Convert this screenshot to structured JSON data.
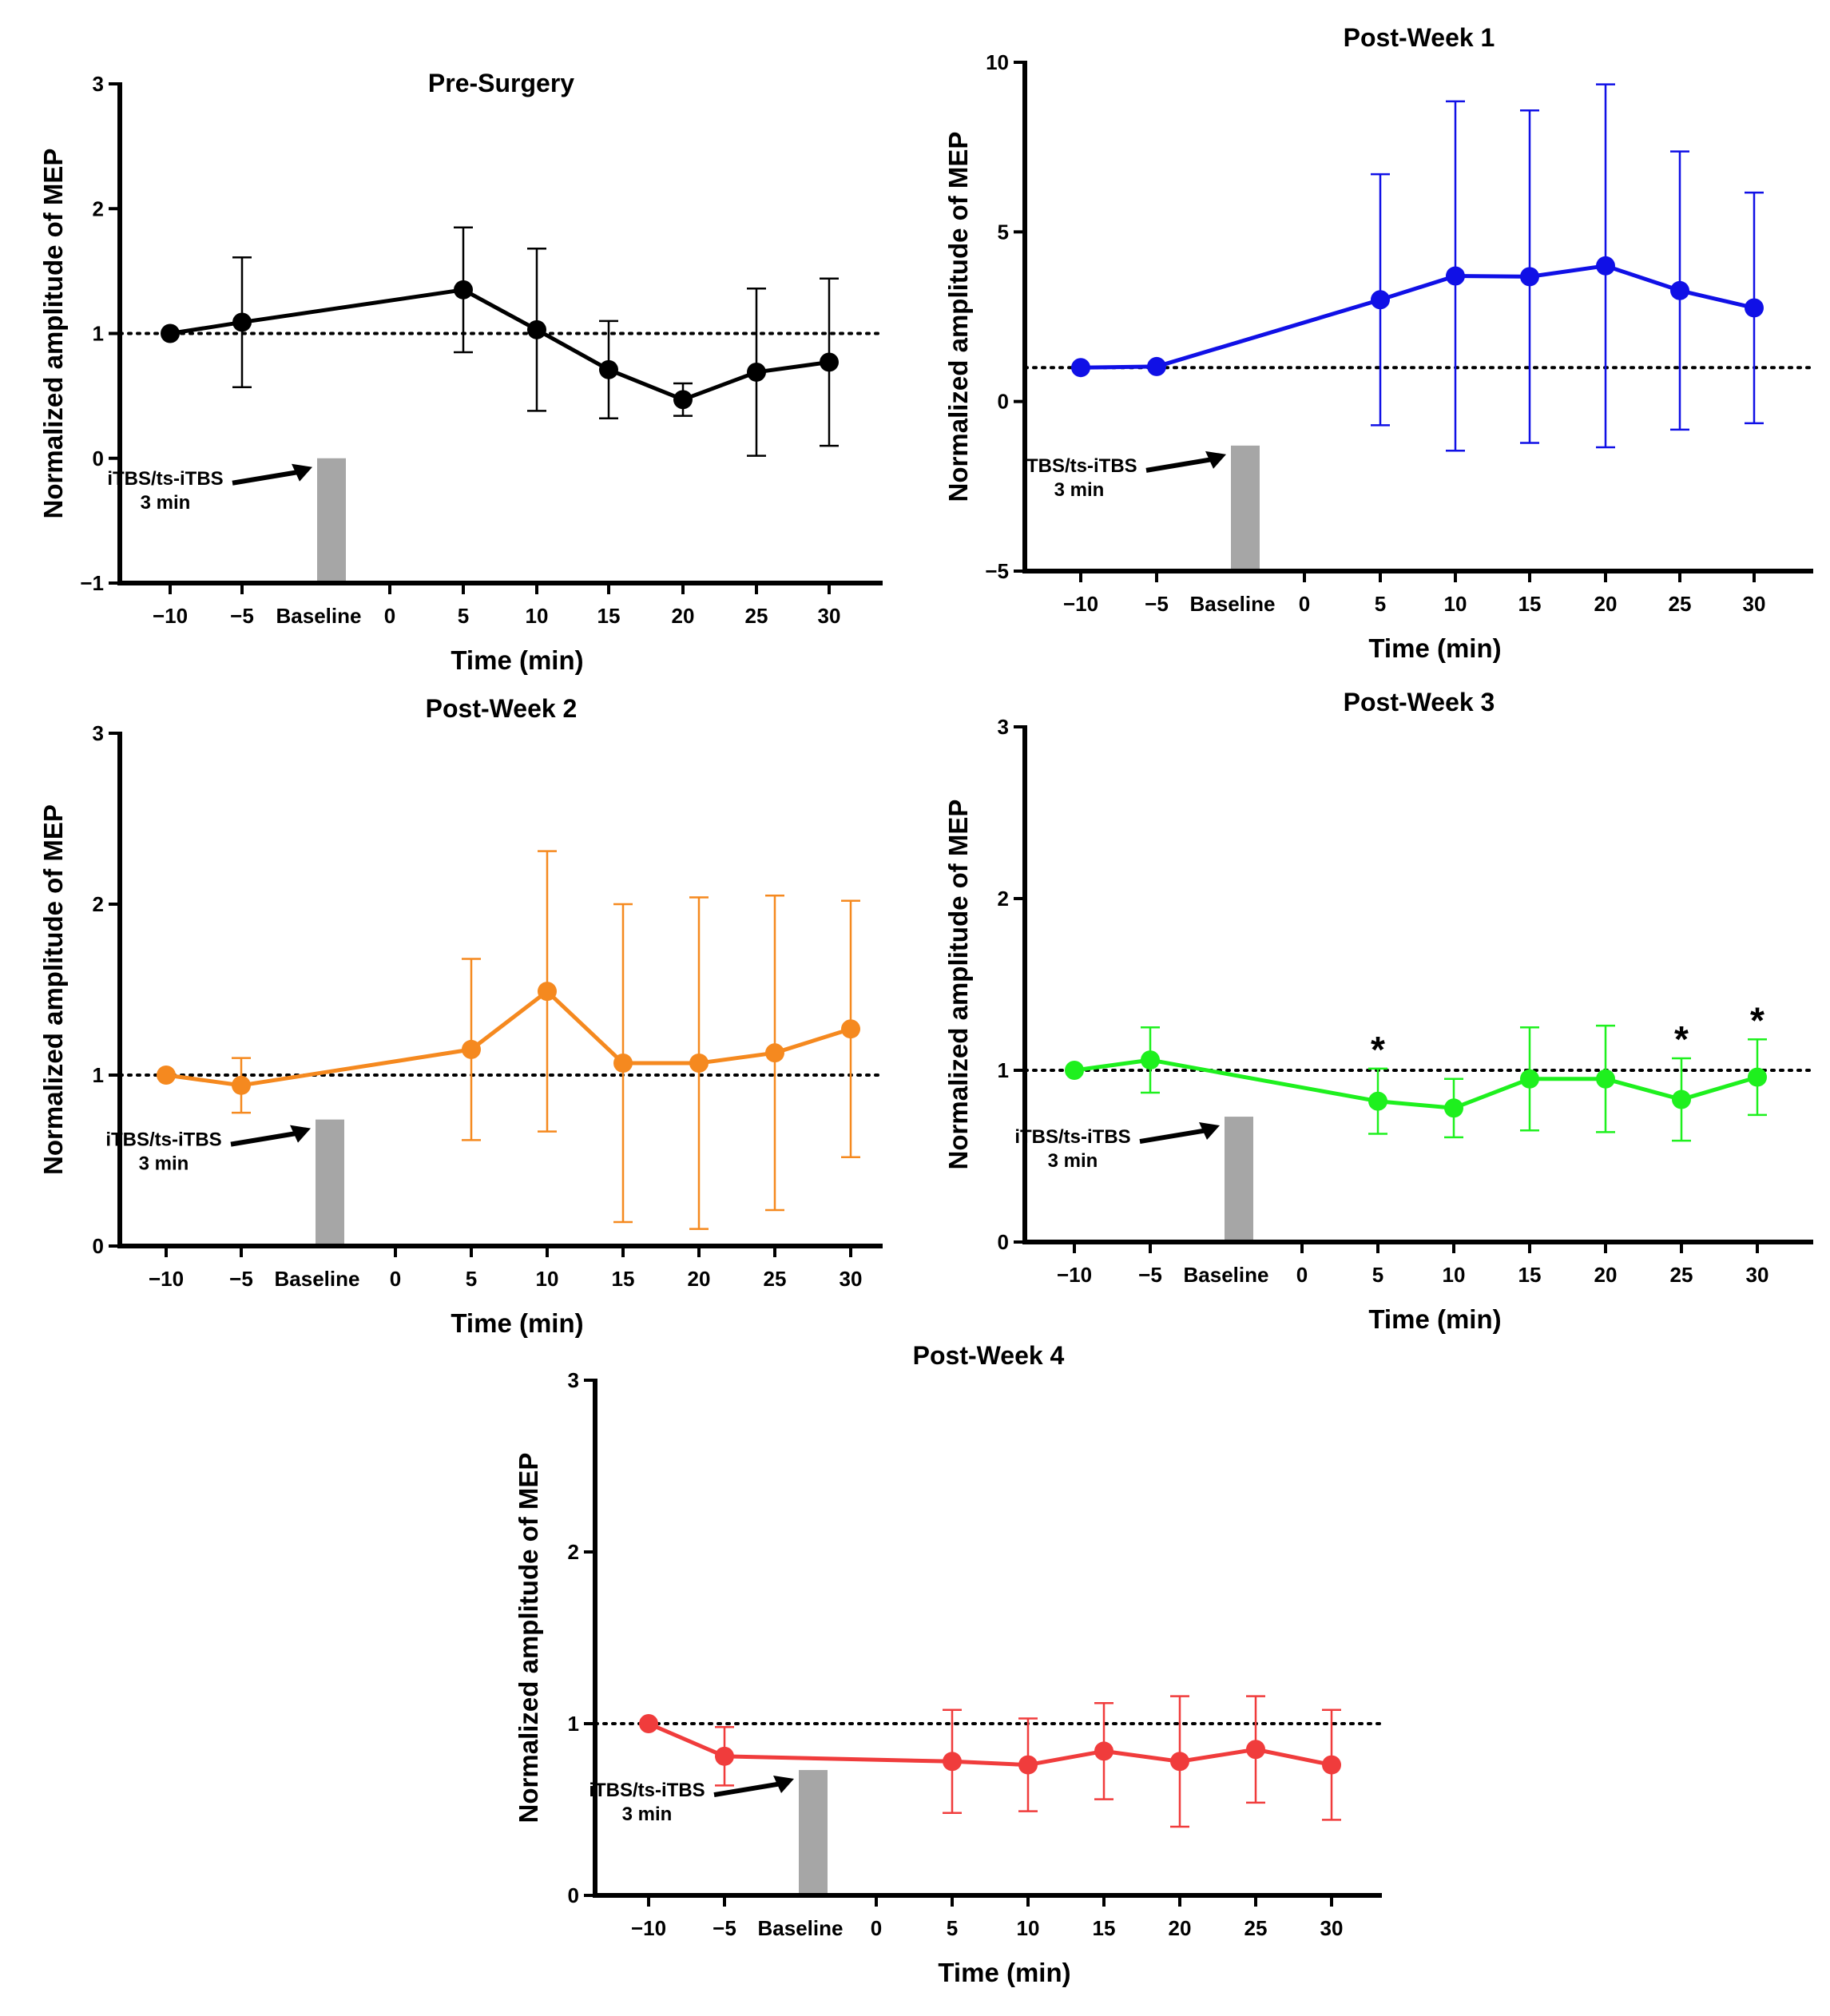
{
  "figure": {
    "x_label": "Time (min)",
    "y_label": "Normalized amplitude of  MEP",
    "baseline_label": "Baseline",
    "stim_label_line1": "iTBS/ts-iTBS",
    "stim_label_line2": "3 min",
    "stim_bar_color": "#a6a6a6",
    "reference_line_value": 1
  },
  "chart_data": [
    {
      "type": "line",
      "title": "Pre-Surgery",
      "color": "#000000",
      "xlabel": "Time (min)",
      "ylabel": "Normalized amplitude of  MEP",
      "x_ticks": [
        "−10",
        "−5",
        "Baseline",
        "0",
        "5",
        "10",
        "15",
        "20",
        "25",
        "30"
      ],
      "ylim": [
        -1,
        3
      ],
      "y_ticks": [
        "−1",
        "0",
        "1",
        "2",
        "3"
      ],
      "x": [
        -10,
        -5,
        5,
        10,
        15,
        20,
        25,
        30
      ],
      "values": [
        1.0,
        1.09,
        1.35,
        1.03,
        0.71,
        0.47,
        0.69,
        0.77
      ],
      "error": [
        0,
        0.52,
        0.5,
        0.65,
        0.39,
        0.13,
        0.67,
        0.67
      ],
      "stim_bar_top": 0,
      "significant_x": []
    },
    {
      "type": "line",
      "title": "Post-Week 1",
      "color": "#1010e6",
      "xlabel": "Time (min)",
      "ylabel": "Normalized amplitude of  MEP",
      "x_ticks": [
        "−10",
        "−5",
        "Baseline",
        "0",
        "5",
        "10",
        "15",
        "20",
        "25",
        "30"
      ],
      "ylim": [
        -5,
        10
      ],
      "y_ticks": [
        "−5",
        "0",
        "5",
        "10"
      ],
      "x": [
        -10,
        -5,
        5,
        10,
        15,
        20,
        25,
        30
      ],
      "values": [
        1.0,
        1.03,
        3.0,
        3.7,
        3.68,
        4.0,
        3.27,
        2.76
      ],
      "error": [
        0,
        0,
        3.7,
        5.15,
        4.9,
        5.35,
        4.1,
        3.4
      ],
      "stim_bar_top": -1.3,
      "significant_x": []
    },
    {
      "type": "line",
      "title": "Post-Week 2",
      "color": "#f5891f",
      "xlabel": "Time (min)",
      "ylabel": "Normalized amplitude of  MEP",
      "x_ticks": [
        "−10",
        "−5",
        "Baseline",
        "0",
        "5",
        "10",
        "15",
        "20",
        "25",
        "30"
      ],
      "ylim": [
        0,
        3
      ],
      "y_ticks": [
        "0",
        "1",
        "2",
        "3"
      ],
      "x": [
        -10,
        -5,
        5,
        10,
        15,
        20,
        25,
        30
      ],
      "values": [
        1.0,
        0.94,
        1.15,
        1.49,
        1.07,
        1.07,
        1.13,
        1.27
      ],
      "error": [
        0,
        0.16,
        0.53,
        0.82,
        0.93,
        0.97,
        0.92,
        0.75
      ],
      "stim_bar_top": 0.74,
      "significant_x": []
    },
    {
      "type": "line",
      "title": "Post-Week 3",
      "color": "#1ef01e",
      "xlabel": "Time (min)",
      "ylabel": "Normalized amplitude of  MEP",
      "x_ticks": [
        "−10",
        "−5",
        "Baseline",
        "0",
        "5",
        "10",
        "15",
        "20",
        "25",
        "30"
      ],
      "ylim": [
        0,
        3
      ],
      "y_ticks": [
        "0",
        "1",
        "2",
        "3"
      ],
      "x": [
        -10,
        -5,
        5,
        10,
        15,
        20,
        25,
        30
      ],
      "values": [
        1.0,
        1.06,
        0.82,
        0.78,
        0.95,
        0.95,
        0.83,
        0.96
      ],
      "error": [
        0,
        0.19,
        0.19,
        0.17,
        0.3,
        0.31,
        0.24,
        0.22
      ],
      "stim_bar_top": 0.73,
      "significant_x": [
        5,
        25,
        30
      ],
      "significance_mark": "*"
    },
    {
      "type": "line",
      "title": "Post-Week 4",
      "color": "#f03c3c",
      "xlabel": "Time (min)",
      "ylabel": "Normalized amplitude of  MEP",
      "x_ticks": [
        "−10",
        "−5",
        "Baseline",
        "0",
        "5",
        "10",
        "15",
        "20",
        "25",
        "30"
      ],
      "ylim": [
        0,
        3
      ],
      "y_ticks": [
        "0",
        "1",
        "2",
        "3"
      ],
      "x": [
        -10,
        -5,
        5,
        10,
        15,
        20,
        25,
        30
      ],
      "values": [
        1.0,
        0.81,
        0.78,
        0.76,
        0.84,
        0.78,
        0.85,
        0.76
      ],
      "error": [
        0,
        0.17,
        0.3,
        0.27,
        0.28,
        0.38,
        0.31,
        0.32
      ],
      "stim_bar_top": 0.73,
      "significant_x": []
    }
  ]
}
